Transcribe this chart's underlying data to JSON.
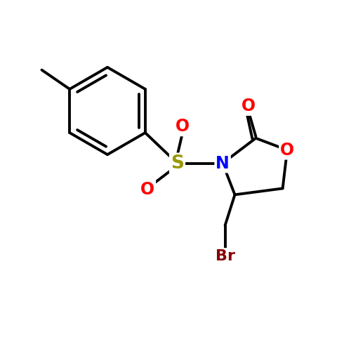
{
  "background_color": "#ffffff",
  "line_color": "#000000",
  "line_width": 2.8,
  "atom_colors": {
    "S": "#999900",
    "N": "#0000ff",
    "O": "#ff0000",
    "Br": "#8b0000",
    "C": "#000000"
  },
  "font_size_atom": 17,
  "font_size_br": 16,
  "figsize": [
    5.0,
    5.0
  ],
  "dpi": 100
}
